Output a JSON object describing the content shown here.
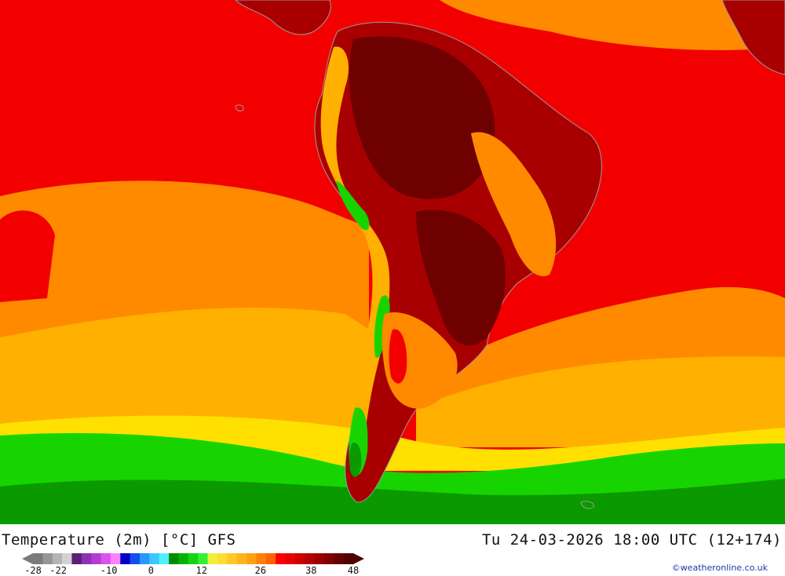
{
  "map": {
    "field_colors": {
      "very_hot": "#6e0000",
      "hot": "#a80000",
      "warm_red": "#f20000",
      "orange": "#ff8a00",
      "light_orange": "#ffb000",
      "yellow": "#fff100",
      "green": "#17d400",
      "dark_green": "#0a9a00",
      "coast_grey": "#9a9a9a"
    }
  },
  "footer": {
    "title": "Temperature (2m) [°C] GFS",
    "valid_time": "Tu 24-03-2026 18:00 UTC (12+174)",
    "credit": "©weatheronline.co.uk"
  },
  "colorbar": {
    "colors": [
      "#7a7a7a",
      "#969696",
      "#b4b4b4",
      "#d2d2d2",
      "#5a1e78",
      "#8c32b4",
      "#b43cd2",
      "#dc50f0",
      "#ff82ff",
      "#0000c8",
      "#1450f0",
      "#2896ff",
      "#3cc8ff",
      "#50f0ff",
      "#008c00",
      "#00b400",
      "#14d214",
      "#32f032",
      "#f0f03c",
      "#ffdc32",
      "#ffc828",
      "#ffb41e",
      "#ffa014",
      "#ff820a",
      "#ff6400",
      "#ff0000",
      "#e60000",
      "#cd0000",
      "#b40000",
      "#9b0000",
      "#820000",
      "#690000",
      "#500000"
    ],
    "ticks": [
      {
        "label": "-28",
        "value": -28
      },
      {
        "label": "-22",
        "value": -22
      },
      {
        "label": "-10",
        "value": -10
      },
      {
        "label": "0",
        "value": 0
      },
      {
        "label": "12",
        "value": 12
      },
      {
        "label": "26",
        "value": 26
      },
      {
        "label": "38",
        "value": 38
      },
      {
        "label": "48",
        "value": 48
      }
    ],
    "range": [
      -28,
      48
    ]
  }
}
